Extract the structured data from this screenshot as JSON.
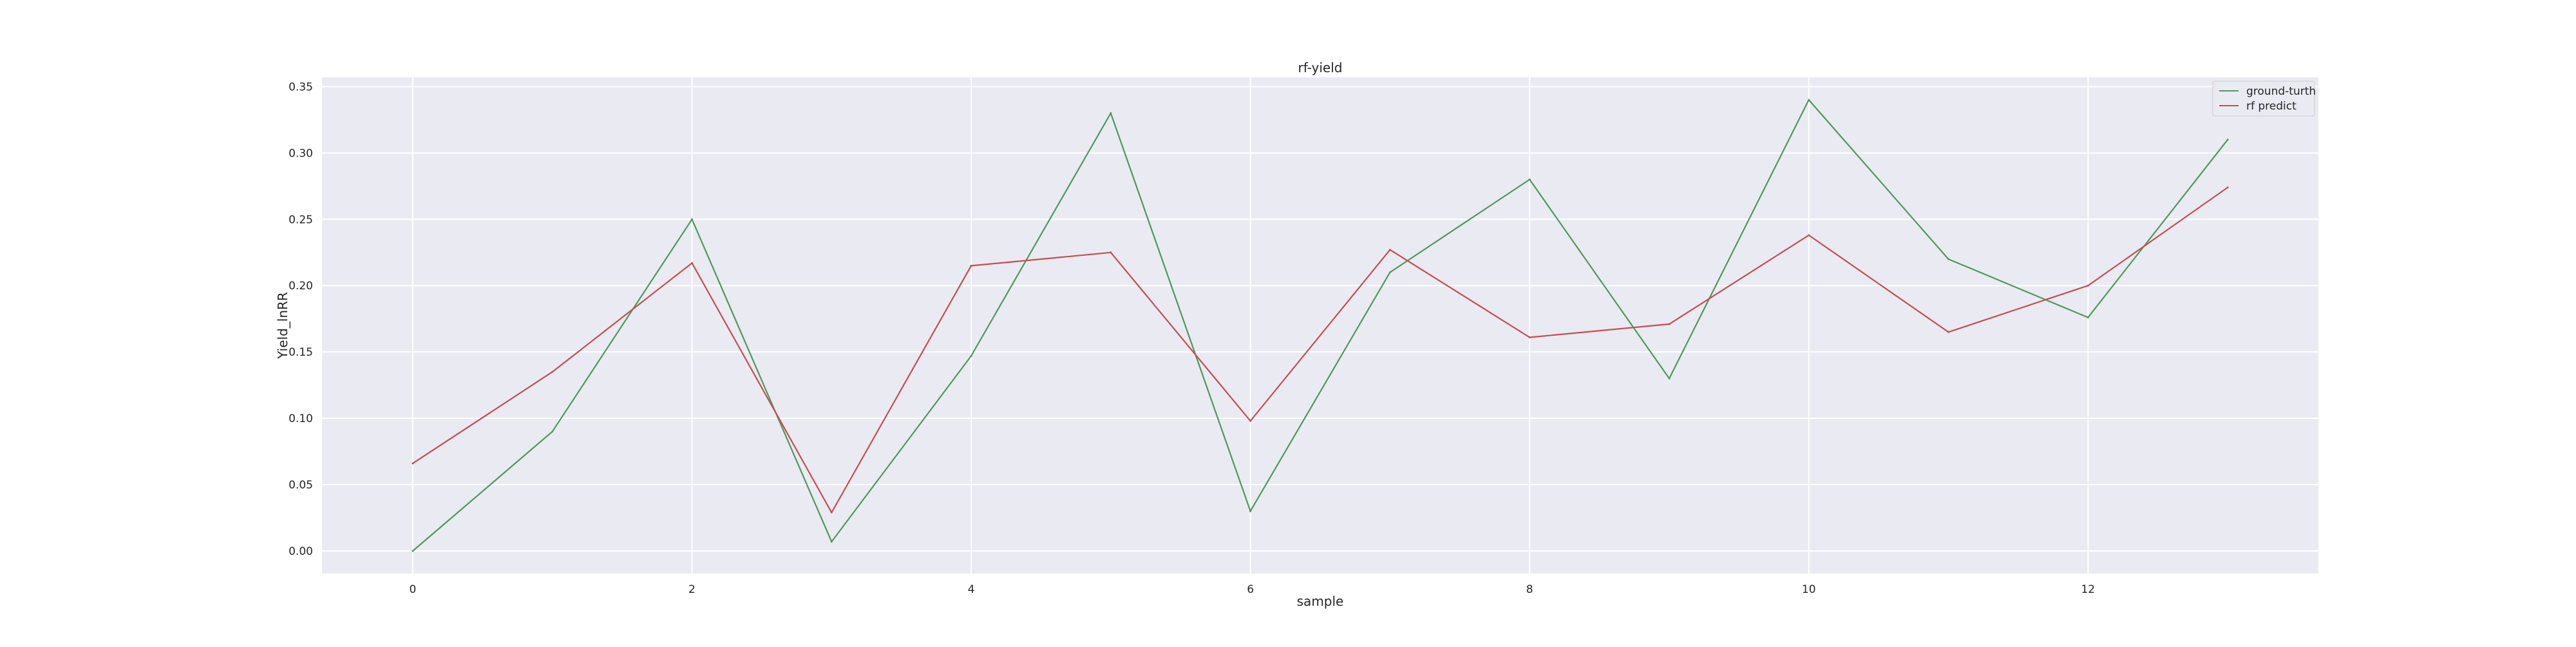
{
  "chart_data": {
    "type": "line",
    "title": "rf-yield",
    "xlabel": "sample",
    "ylabel": "Yield_lnRR",
    "x": [
      0,
      1,
      2,
      3,
      4,
      5,
      6,
      7,
      8,
      9,
      10,
      11,
      12,
      13
    ],
    "xlim": [
      -0.65,
      13.65
    ],
    "ylim": [
      -0.017,
      0.357
    ],
    "xticks": [
      0,
      2,
      4,
      6,
      8,
      10,
      12
    ],
    "yticks": [
      0.0,
      0.05,
      0.1,
      0.15,
      0.2,
      0.25,
      0.3,
      0.35
    ],
    "ytick_labels": [
      "0.00",
      "0.05",
      "0.10",
      "0.15",
      "0.20",
      "0.25",
      "0.30",
      "0.35"
    ],
    "grid": true,
    "legend_position": "top-right",
    "series": [
      {
        "name": "ground-turth",
        "color": "#4c9a5a",
        "values": [
          0.0,
          0.09,
          0.25,
          0.007,
          0.147,
          0.33,
          0.03,
          0.21,
          0.28,
          0.13,
          0.34,
          0.22,
          0.176,
          0.31
        ]
      },
      {
        "name": "rf predict",
        "color": "#c44e52",
        "values": [
          0.066,
          0.135,
          0.217,
          0.029,
          0.215,
          0.225,
          0.098,
          0.227,
          0.161,
          0.171,
          0.238,
          0.165,
          0.2,
          0.274
        ]
      }
    ]
  }
}
